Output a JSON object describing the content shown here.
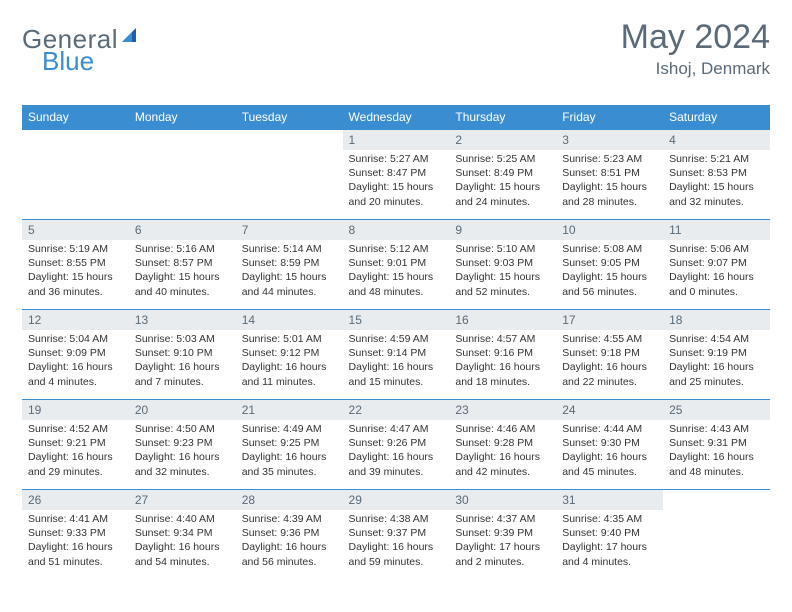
{
  "brand": {
    "part1": "General",
    "part2": "Blue"
  },
  "title": "May 2024",
  "location": "Ishoj, Denmark",
  "colors": {
    "header_bg": "#3b8dd1",
    "header_text": "#ffffff",
    "daynum_bg": "#e9ecef",
    "text_gray": "#5a6a78",
    "border": "#3b8dd1",
    "page_bg": "#ffffff"
  },
  "typography": {
    "title_fontsize": 34,
    "location_fontsize": 17,
    "weekday_fontsize": 12,
    "daynum_fontsize": 12,
    "cell_fontsize": 10.5
  },
  "weekdays": [
    "Sunday",
    "Monday",
    "Tuesday",
    "Wednesday",
    "Thursday",
    "Friday",
    "Saturday"
  ],
  "weeks": [
    [
      {
        "n": "",
        "lines": []
      },
      {
        "n": "",
        "lines": []
      },
      {
        "n": "",
        "lines": []
      },
      {
        "n": "1",
        "lines": [
          "Sunrise: 5:27 AM",
          "Sunset: 8:47 PM",
          "Daylight: 15 hours",
          "and 20 minutes."
        ]
      },
      {
        "n": "2",
        "lines": [
          "Sunrise: 5:25 AM",
          "Sunset: 8:49 PM",
          "Daylight: 15 hours",
          "and 24 minutes."
        ]
      },
      {
        "n": "3",
        "lines": [
          "Sunrise: 5:23 AM",
          "Sunset: 8:51 PM",
          "Daylight: 15 hours",
          "and 28 minutes."
        ]
      },
      {
        "n": "4",
        "lines": [
          "Sunrise: 5:21 AM",
          "Sunset: 8:53 PM",
          "Daylight: 15 hours",
          "and 32 minutes."
        ]
      }
    ],
    [
      {
        "n": "5",
        "lines": [
          "Sunrise: 5:19 AM",
          "Sunset: 8:55 PM",
          "Daylight: 15 hours",
          "and 36 minutes."
        ]
      },
      {
        "n": "6",
        "lines": [
          "Sunrise: 5:16 AM",
          "Sunset: 8:57 PM",
          "Daylight: 15 hours",
          "and 40 minutes."
        ]
      },
      {
        "n": "7",
        "lines": [
          "Sunrise: 5:14 AM",
          "Sunset: 8:59 PM",
          "Daylight: 15 hours",
          "and 44 minutes."
        ]
      },
      {
        "n": "8",
        "lines": [
          "Sunrise: 5:12 AM",
          "Sunset: 9:01 PM",
          "Daylight: 15 hours",
          "and 48 minutes."
        ]
      },
      {
        "n": "9",
        "lines": [
          "Sunrise: 5:10 AM",
          "Sunset: 9:03 PM",
          "Daylight: 15 hours",
          "and 52 minutes."
        ]
      },
      {
        "n": "10",
        "lines": [
          "Sunrise: 5:08 AM",
          "Sunset: 9:05 PM",
          "Daylight: 15 hours",
          "and 56 minutes."
        ]
      },
      {
        "n": "11",
        "lines": [
          "Sunrise: 5:06 AM",
          "Sunset: 9:07 PM",
          "Daylight: 16 hours",
          "and 0 minutes."
        ]
      }
    ],
    [
      {
        "n": "12",
        "lines": [
          "Sunrise: 5:04 AM",
          "Sunset: 9:09 PM",
          "Daylight: 16 hours",
          "and 4 minutes."
        ]
      },
      {
        "n": "13",
        "lines": [
          "Sunrise: 5:03 AM",
          "Sunset: 9:10 PM",
          "Daylight: 16 hours",
          "and 7 minutes."
        ]
      },
      {
        "n": "14",
        "lines": [
          "Sunrise: 5:01 AM",
          "Sunset: 9:12 PM",
          "Daylight: 16 hours",
          "and 11 minutes."
        ]
      },
      {
        "n": "15",
        "lines": [
          "Sunrise: 4:59 AM",
          "Sunset: 9:14 PM",
          "Daylight: 16 hours",
          "and 15 minutes."
        ]
      },
      {
        "n": "16",
        "lines": [
          "Sunrise: 4:57 AM",
          "Sunset: 9:16 PM",
          "Daylight: 16 hours",
          "and 18 minutes."
        ]
      },
      {
        "n": "17",
        "lines": [
          "Sunrise: 4:55 AM",
          "Sunset: 9:18 PM",
          "Daylight: 16 hours",
          "and 22 minutes."
        ]
      },
      {
        "n": "18",
        "lines": [
          "Sunrise: 4:54 AM",
          "Sunset: 9:19 PM",
          "Daylight: 16 hours",
          "and 25 minutes."
        ]
      }
    ],
    [
      {
        "n": "19",
        "lines": [
          "Sunrise: 4:52 AM",
          "Sunset: 9:21 PM",
          "Daylight: 16 hours",
          "and 29 minutes."
        ]
      },
      {
        "n": "20",
        "lines": [
          "Sunrise: 4:50 AM",
          "Sunset: 9:23 PM",
          "Daylight: 16 hours",
          "and 32 minutes."
        ]
      },
      {
        "n": "21",
        "lines": [
          "Sunrise: 4:49 AM",
          "Sunset: 9:25 PM",
          "Daylight: 16 hours",
          "and 35 minutes."
        ]
      },
      {
        "n": "22",
        "lines": [
          "Sunrise: 4:47 AM",
          "Sunset: 9:26 PM",
          "Daylight: 16 hours",
          "and 39 minutes."
        ]
      },
      {
        "n": "23",
        "lines": [
          "Sunrise: 4:46 AM",
          "Sunset: 9:28 PM",
          "Daylight: 16 hours",
          "and 42 minutes."
        ]
      },
      {
        "n": "24",
        "lines": [
          "Sunrise: 4:44 AM",
          "Sunset: 9:30 PM",
          "Daylight: 16 hours",
          "and 45 minutes."
        ]
      },
      {
        "n": "25",
        "lines": [
          "Sunrise: 4:43 AM",
          "Sunset: 9:31 PM",
          "Daylight: 16 hours",
          "and 48 minutes."
        ]
      }
    ],
    [
      {
        "n": "26",
        "lines": [
          "Sunrise: 4:41 AM",
          "Sunset: 9:33 PM",
          "Daylight: 16 hours",
          "and 51 minutes."
        ]
      },
      {
        "n": "27",
        "lines": [
          "Sunrise: 4:40 AM",
          "Sunset: 9:34 PM",
          "Daylight: 16 hours",
          "and 54 minutes."
        ]
      },
      {
        "n": "28",
        "lines": [
          "Sunrise: 4:39 AM",
          "Sunset: 9:36 PM",
          "Daylight: 16 hours",
          "and 56 minutes."
        ]
      },
      {
        "n": "29",
        "lines": [
          "Sunrise: 4:38 AM",
          "Sunset: 9:37 PM",
          "Daylight: 16 hours",
          "and 59 minutes."
        ]
      },
      {
        "n": "30",
        "lines": [
          "Sunrise: 4:37 AM",
          "Sunset: 9:39 PM",
          "Daylight: 17 hours",
          "and 2 minutes."
        ]
      },
      {
        "n": "31",
        "lines": [
          "Sunrise: 4:35 AM",
          "Sunset: 9:40 PM",
          "Daylight: 17 hours",
          "and 4 minutes."
        ]
      },
      {
        "n": "",
        "lines": []
      }
    ]
  ]
}
